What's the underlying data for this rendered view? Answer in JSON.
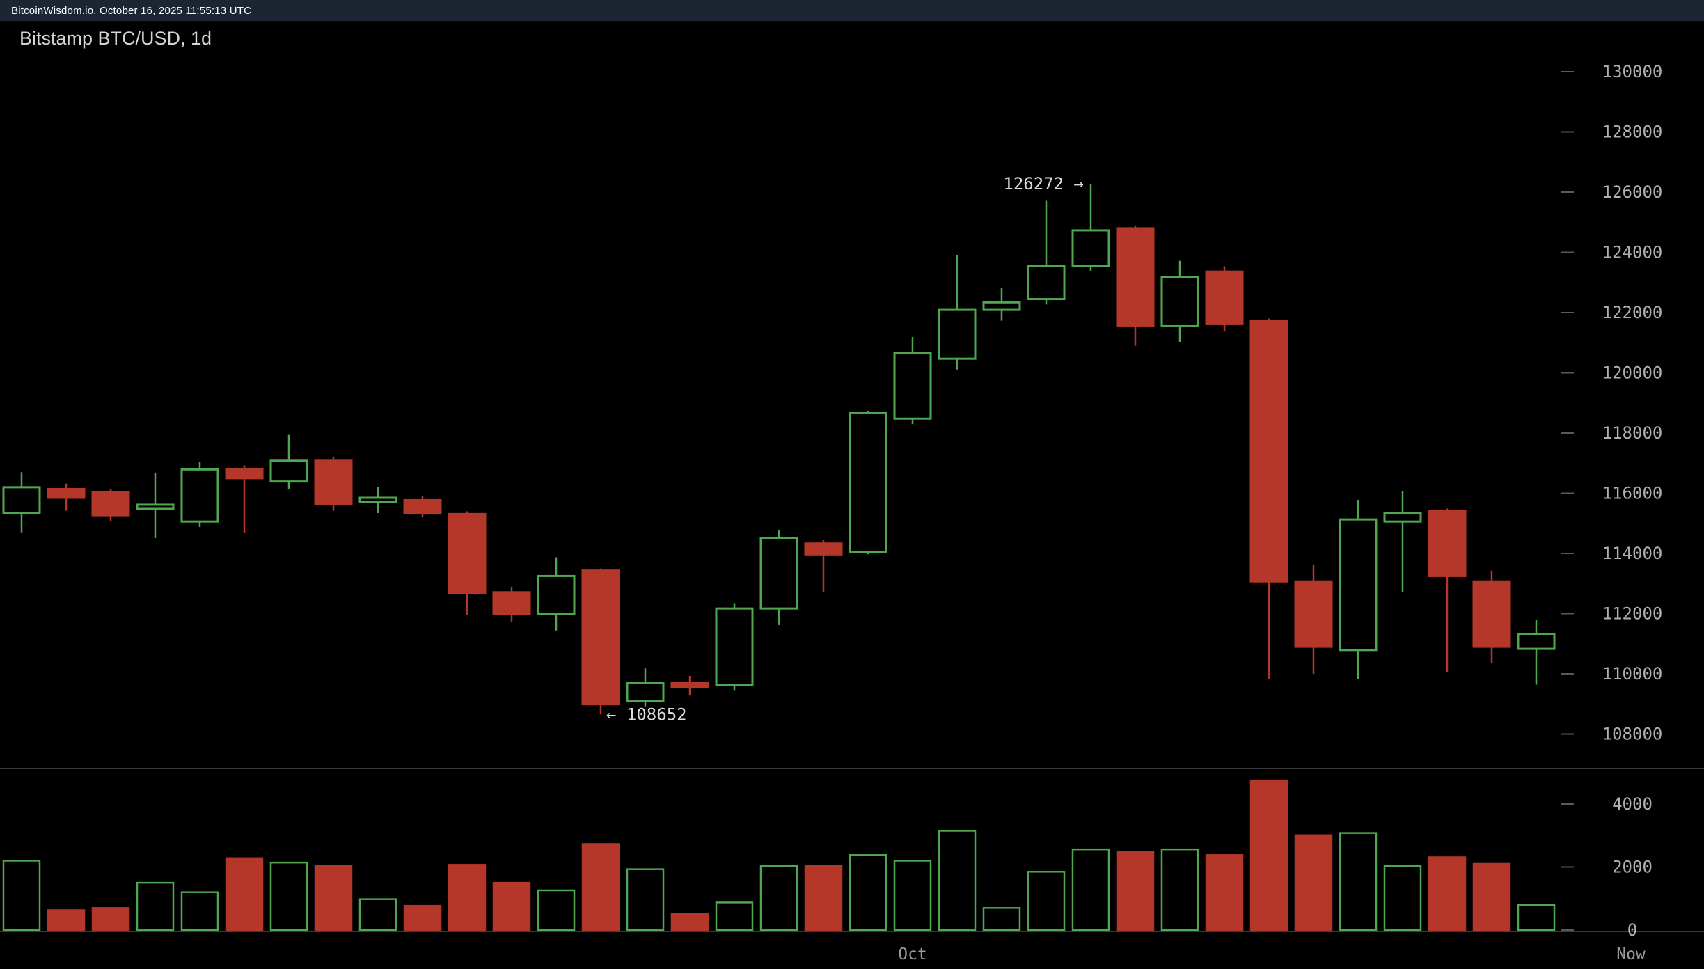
{
  "topbar": {
    "text": "BitcoinWisdom.io, October 16, 2025 11:55:13 UTC"
  },
  "chart": {
    "title": "Bitstamp BTC/USD, 1d"
  },
  "colors": {
    "background": "#000000",
    "topbar_bg": "#1c2633",
    "up": "#4fa74f",
    "down": "#b5372a",
    "axis_text": "#b0b0b0",
    "x_axis_text": "#999999",
    "title_text": "#d4d4d4",
    "annotation_text": "#dddddd",
    "tick": "#5a5a5a",
    "divider": "#3a3a3a"
  },
  "chart_data": {
    "type": "candlestick",
    "title": "Bitstamp BTC/USD, 1d",
    "interval": "1d",
    "price_axis": {
      "side": "right",
      "min": 108000,
      "max": 130000,
      "tick_step": 2000,
      "ticks": [
        130000,
        128000,
        126000,
        124000,
        122000,
        120000,
        118000,
        116000,
        114000,
        112000,
        110000,
        108000
      ]
    },
    "volume_axis": {
      "ticks": [
        4000,
        2000,
        0
      ]
    },
    "x_axis": {
      "labels": [
        {
          "text": "Oct",
          "candle_index": 20
        },
        {
          "text": "Now",
          "at": "right-edge"
        }
      ]
    },
    "annotations": [
      {
        "text": "126272 →",
        "price": 126272,
        "candle_index": 24,
        "placement": "left-of-high"
      },
      {
        "text": "← 108652",
        "price": 108652,
        "candle_index": 13,
        "placement": "right-of-low"
      }
    ],
    "candles": [
      {
        "open": 115350,
        "high": 116700,
        "low": 114700,
        "close": 116200,
        "volume": 2200
      },
      {
        "open": 116140,
        "high": 116320,
        "low": 115420,
        "close": 115850,
        "volume": 630
      },
      {
        "open": 116030,
        "high": 116140,
        "low": 115060,
        "close": 115270,
        "volume": 700
      },
      {
        "open": 115480,
        "high": 116680,
        "low": 114510,
        "close": 115620,
        "volume": 1500
      },
      {
        "open": 115060,
        "high": 117050,
        "low": 114880,
        "close": 116790,
        "volume": 1200
      },
      {
        "open": 116790,
        "high": 116930,
        "low": 114690,
        "close": 116500,
        "volume": 2280
      },
      {
        "open": 116390,
        "high": 117940,
        "low": 116140,
        "close": 117080,
        "volume": 2140
      },
      {
        "open": 117080,
        "high": 117220,
        "low": 115420,
        "close": 115630,
        "volume": 2030
      },
      {
        "open": 115700,
        "high": 116210,
        "low": 115340,
        "close": 115850,
        "volume": 980
      },
      {
        "open": 115770,
        "high": 115920,
        "low": 115200,
        "close": 115340,
        "volume": 770
      },
      {
        "open": 115310,
        "high": 115400,
        "low": 111950,
        "close": 112670,
        "volume": 2070
      },
      {
        "open": 112710,
        "high": 112890,
        "low": 111730,
        "close": 111990,
        "volume": 1500
      },
      {
        "open": 111990,
        "high": 113870,
        "low": 111440,
        "close": 113250,
        "volume": 1260
      },
      {
        "open": 113430,
        "high": 113500,
        "low": 108652,
        "close": 108990,
        "volume": 2730
      },
      {
        "open": 109100,
        "high": 110180,
        "low": 108920,
        "close": 109710,
        "volume": 1930
      },
      {
        "open": 109710,
        "high": 109930,
        "low": 109280,
        "close": 109570,
        "volume": 525
      },
      {
        "open": 109640,
        "high": 112350,
        "low": 109460,
        "close": 112170,
        "volume": 875
      },
      {
        "open": 112170,
        "high": 114770,
        "low": 111620,
        "close": 114510,
        "volume": 2030
      },
      {
        "open": 114330,
        "high": 114440,
        "low": 112710,
        "close": 113970,
        "volume": 2030
      },
      {
        "open": 114040,
        "high": 118740,
        "low": 113970,
        "close": 118660,
        "volume": 2380
      },
      {
        "open": 118480,
        "high": 121190,
        "low": 118300,
        "close": 120650,
        "volume": 2200
      },
      {
        "open": 120470,
        "high": 123900,
        "low": 120110,
        "close": 122090,
        "volume": 3150
      },
      {
        "open": 122090,
        "high": 122810,
        "low": 121730,
        "close": 122340,
        "volume": 700
      },
      {
        "open": 122450,
        "high": 125710,
        "low": 122270,
        "close": 123540,
        "volume": 1850
      },
      {
        "open": 123540,
        "high": 126272,
        "low": 123390,
        "close": 124730,
        "volume": 2560
      },
      {
        "open": 124800,
        "high": 124900,
        "low": 120900,
        "close": 121550,
        "volume": 2490
      },
      {
        "open": 121550,
        "high": 123720,
        "low": 121010,
        "close": 123180,
        "volume": 2560
      },
      {
        "open": 123360,
        "high": 123540,
        "low": 121370,
        "close": 121620,
        "volume": 2380
      },
      {
        "open": 121730,
        "high": 121800,
        "low": 109820,
        "close": 113070,
        "volume": 4750
      },
      {
        "open": 113070,
        "high": 113610,
        "low": 110000,
        "close": 110900,
        "volume": 3010
      },
      {
        "open": 110790,
        "high": 115780,
        "low": 109820,
        "close": 115130,
        "volume": 3080
      },
      {
        "open": 115060,
        "high": 116070,
        "low": 112710,
        "close": 115340,
        "volume": 2030
      },
      {
        "open": 115420,
        "high": 115490,
        "low": 110070,
        "close": 113250,
        "volume": 2310
      },
      {
        "open": 113070,
        "high": 113430,
        "low": 110360,
        "close": 110900,
        "volume": 2100
      },
      {
        "open": 110830,
        "high": 111800,
        "low": 109640,
        "close": 111330,
        "volume": 800
      }
    ]
  }
}
